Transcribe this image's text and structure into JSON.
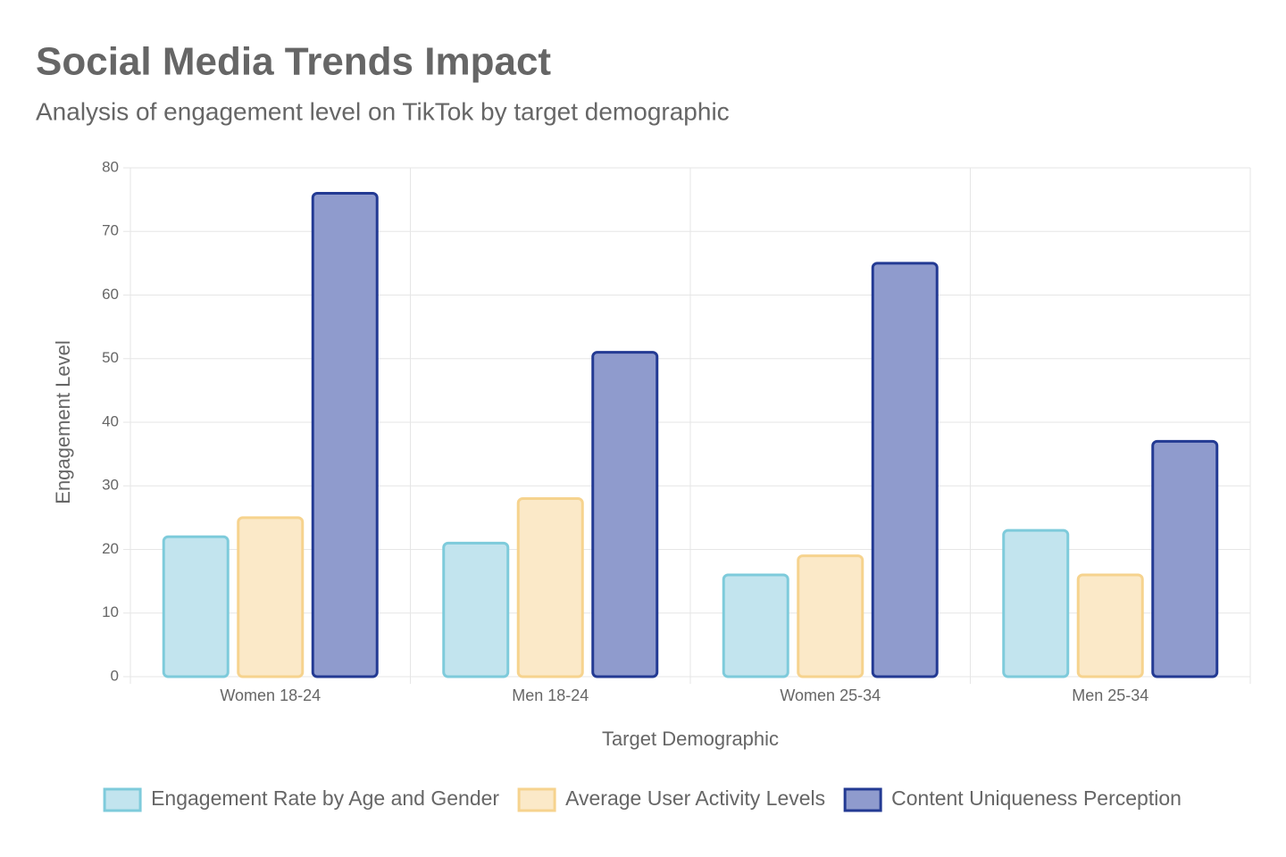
{
  "chart_data": {
    "type": "bar",
    "title": "Social Media Trends Impact",
    "subtitle": "Analysis of engagement level on TikTok by target demographic",
    "x_label": "Target Demographic",
    "y_label": "Engagement Level",
    "categories": [
      "Women 18-24",
      "Men 18-24",
      "Women 25-34",
      "Men 25-34"
    ],
    "series": [
      {
        "name": "Engagement Rate by Age and Gender",
        "color": "#7ecbdb",
        "fill": "#c2e4ee",
        "values": [
          22,
          21,
          16,
          23
        ]
      },
      {
        "name": "Average User Activity Levels",
        "color": "#f6d38e",
        "fill": "#fbe9c8",
        "values": [
          25,
          28,
          19,
          16
        ]
      },
      {
        "name": "Content Uniqueness Perception",
        "color": "#233a93",
        "fill": "#8f9bcd",
        "values": [
          76,
          51,
          65,
          37
        ]
      }
    ],
    "ylim": [
      0,
      80
    ],
    "yticks": [
      0,
      10,
      20,
      30,
      40,
      50,
      60,
      70,
      80
    ],
    "grid": true,
    "legend": "bottom"
  }
}
